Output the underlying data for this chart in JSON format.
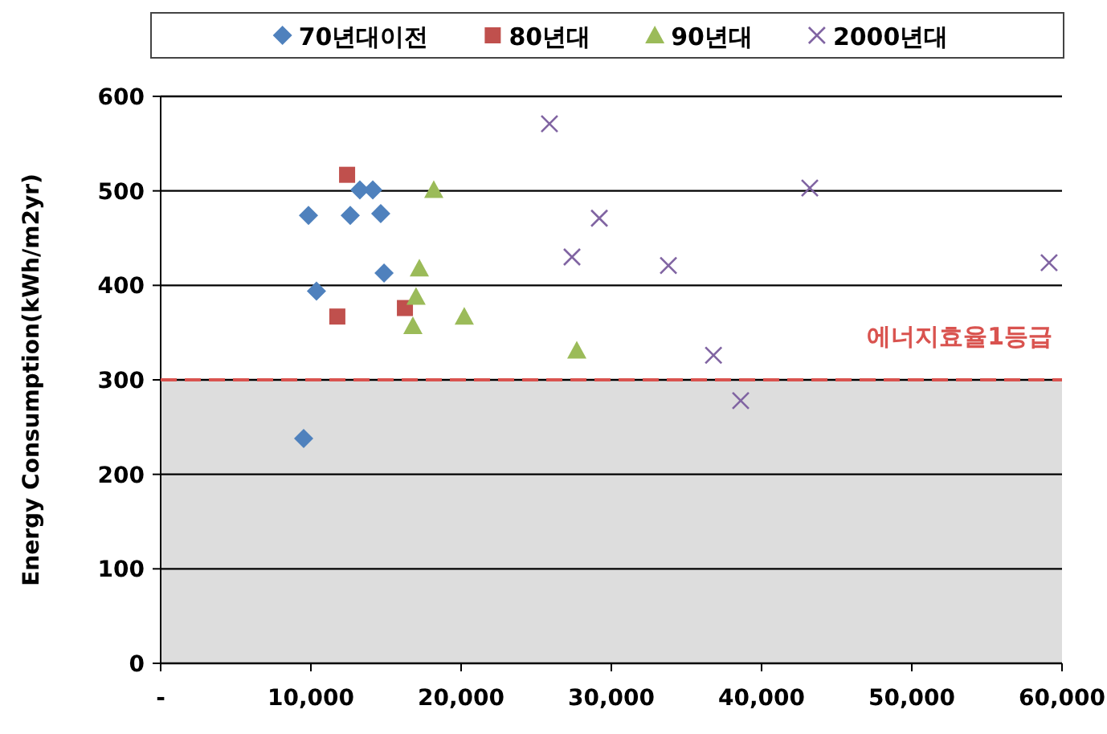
{
  "chart_data": {
    "type": "scatter",
    "ylabel": "Energy Consumption(kWh/m2yr)",
    "xlim": [
      0,
      60000
    ],
    "xticks": [
      {
        "value": 0,
        "label": "-"
      },
      {
        "value": 10000,
        "label": "10,000"
      },
      {
        "value": 20000,
        "label": "20,000"
      },
      {
        "value": 30000,
        "label": "30,000"
      },
      {
        "value": 40000,
        "label": "40,000"
      },
      {
        "value": 50000,
        "label": "50,000"
      },
      {
        "value": 60000,
        "label": "60,000"
      }
    ],
    "ylim": [
      0,
      600
    ],
    "yticks": [
      0,
      100,
      200,
      300,
      400,
      500,
      600
    ],
    "grid": "y",
    "legend": "top",
    "ref_lines": [
      {
        "axis": "y",
        "value": 300,
        "label": "에너지효율1등급",
        "color": "#d9534f",
        "line_style": "dashed"
      }
    ],
    "bands": [
      {
        "axis": "y",
        "from": 0,
        "to": 300,
        "label": null,
        "color": "#dddddd"
      }
    ],
    "series": [
      {
        "name": "70년대이전",
        "color": "#4f81bd",
        "marker": "diamond",
        "x": [
          9840,
          10370,
          13260,
          14120,
          12620,
          14650,
          14870,
          9520
        ],
        "values": [
          474,
          394,
          501,
          501,
          474,
          476,
          413,
          238
        ]
      },
      {
        "name": "80년대",
        "color": "#c0504d",
        "marker": "square",
        "x": [
          12410,
          11760,
          16260
        ],
        "values": [
          517,
          367,
          376
        ]
      },
      {
        "name": "90년대",
        "color": "#9bbb59",
        "marker": "triangle",
        "x": [
          18180,
          17220,
          17000,
          16790,
          20210,
          27700
        ],
        "values": [
          501,
          418,
          388,
          357,
          367,
          331
        ]
      },
      {
        "name": "2000년대",
        "color": "#8064a2",
        "marker": "cross",
        "x": [
          25880,
          29200,
          27380,
          33800,
          36800,
          38610,
          43210,
          59140
        ],
        "values": [
          571,
          471,
          430,
          421,
          326,
          278,
          503,
          424
        ]
      }
    ]
  }
}
